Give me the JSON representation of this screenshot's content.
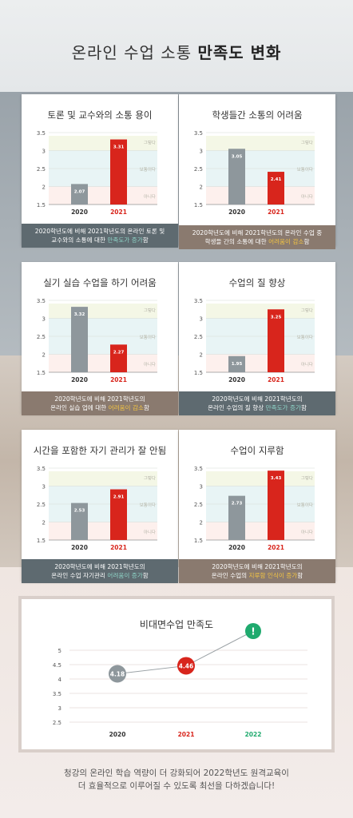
{
  "page": {
    "title_normal": "온라인 수업 소통",
    "title_bold": "만족도 변화",
    "footer_line1": "청강의 온라인 학습 역량이 더 강화되어 2022학년도 원격교육이",
    "footer_line2": "더 효율적으로 이루어질 수 있도록 최선을 다하겠습니다!"
  },
  "band_labels": [
    "그렇다",
    "보통이다",
    "아니다"
  ],
  "colors": {
    "bar_2020": "#8e979c",
    "bar_2021": "#d8251c",
    "band_top": "#f4f7e6",
    "band_mid": "#e8f4f5",
    "band_low": "#fdf0ed"
  },
  "cards": [
    {
      "title": "토론 및 교수와의 소통 용이",
      "caption_line1": "2020학년도에 비해 2021학년도의 온라인 토론 및",
      "caption_line2_pre": "교수와의 소통에 대한 ",
      "caption_line2_hl": "만족도가 증가",
      "caption_line2_post": "함",
      "caption_style": "gray",
      "hl_color": "green"
    },
    {
      "title": "학생들간 소통의 어려움",
      "caption_line1": "2020학년도에 비해 2021학년도의 온라인 수업 중",
      "caption_line2_pre": "학생들 간의 소통에 대한 ",
      "caption_line2_hl": "어려움이 감소",
      "caption_line2_post": "함",
      "caption_style": "brown",
      "hl_color": "yellow"
    },
    {
      "title": "실기 실습 수업을 하기 어려움",
      "caption_line1": "2020학년도에 비해 2021학년도의",
      "caption_line2_pre": "온라인 실습 업에 대한 ",
      "caption_line2_hl": "어려움이 감소",
      "caption_line2_post": "함",
      "caption_style": "brown",
      "hl_color": "yellow"
    },
    {
      "title": "수업의 질 향상",
      "caption_line1": "2020학년도에 비해 2021학년도의",
      "caption_line2_pre": "온라인 수업의 질 향상 ",
      "caption_line2_hl": "만족도가 증가",
      "caption_line2_post": "함",
      "caption_style": "gray",
      "hl_color": "green"
    },
    {
      "title": "시간을 포함한 자기 관리가 잘 안됨",
      "caption_line1": "2020학년도에 비해 2021학년도의",
      "caption_line2_pre": "온라인 수업 자기관리 ",
      "caption_line2_hl": "어려움이 증가",
      "caption_line2_post": "함",
      "caption_style": "gray",
      "hl_color": "green"
    },
    {
      "title": "수업이 지루함",
      "caption_line1": "2020학년도에 비해 2021학년도의",
      "caption_line2_pre": "온라인 수업의 ",
      "caption_line2_hl": "지루함 인식이 증가",
      "caption_line2_post": "함",
      "caption_style": "brown",
      "hl_color": "yellow"
    }
  ],
  "chart_data": [
    {
      "type": "bar",
      "title": "토론 및 교수와의 소통 용이",
      "categories": [
        "2020",
        "2021"
      ],
      "values": [
        2.07,
        3.31
      ],
      "ylim": [
        1.5,
        3.5
      ],
      "yticks": [
        "1.5",
        "2",
        "2.5",
        "3",
        "3.5"
      ]
    },
    {
      "type": "bar",
      "title": "학생들간 소통의 어려움",
      "categories": [
        "2020",
        "2021"
      ],
      "values": [
        3.05,
        2.41
      ],
      "ylim": [
        1.5,
        3.5
      ],
      "yticks": [
        "1.5",
        "2",
        "2.5",
        "3",
        "3.5"
      ]
    },
    {
      "type": "bar",
      "title": "실기 실습 수업을 하기 어려움",
      "categories": [
        "2020",
        "2021"
      ],
      "values": [
        3.32,
        2.27
      ],
      "ylim": [
        1.5,
        3.5
      ],
      "yticks": [
        "1.5",
        "2",
        "2.5",
        "3",
        "3.5"
      ]
    },
    {
      "type": "bar",
      "title": "수업의 질 향상",
      "categories": [
        "2020",
        "2021"
      ],
      "values": [
        1.95,
        3.25
      ],
      "ylim": [
        1.5,
        3.5
      ],
      "yticks": [
        "1.5",
        "2",
        "2.5",
        "3",
        "3.5"
      ]
    },
    {
      "type": "bar",
      "title": "시간을 포함한 자기 관리가 잘 안됨",
      "categories": [
        "2020",
        "2021"
      ],
      "values": [
        2.53,
        2.91
      ],
      "ylim": [
        1.5,
        3.5
      ],
      "yticks": [
        "1.5",
        "2",
        "2.5",
        "3",
        "3.5"
      ]
    },
    {
      "type": "bar",
      "title": "수업이 지루함",
      "categories": [
        "2020",
        "2021"
      ],
      "values": [
        2.73,
        3.43
      ],
      "ylim": [
        1.5,
        3.5
      ],
      "yticks": [
        "1.5",
        "2",
        "2.5",
        "3",
        "3.5"
      ]
    },
    {
      "type": "line",
      "title": "비대면수업 만족도",
      "categories": [
        "2020",
        "2021",
        "2022"
      ],
      "values": [
        4.18,
        4.46,
        null
      ],
      "point_labels": [
        "4.18",
        "4.46",
        "!"
      ],
      "ylim": [
        2.5,
        5
      ],
      "yticks": [
        "2.5",
        "3",
        "3.5",
        "4",
        "4.5",
        "5"
      ],
      "point_colors": [
        "#8e979c",
        "#d8251c",
        "#1faa6e"
      ]
    }
  ]
}
